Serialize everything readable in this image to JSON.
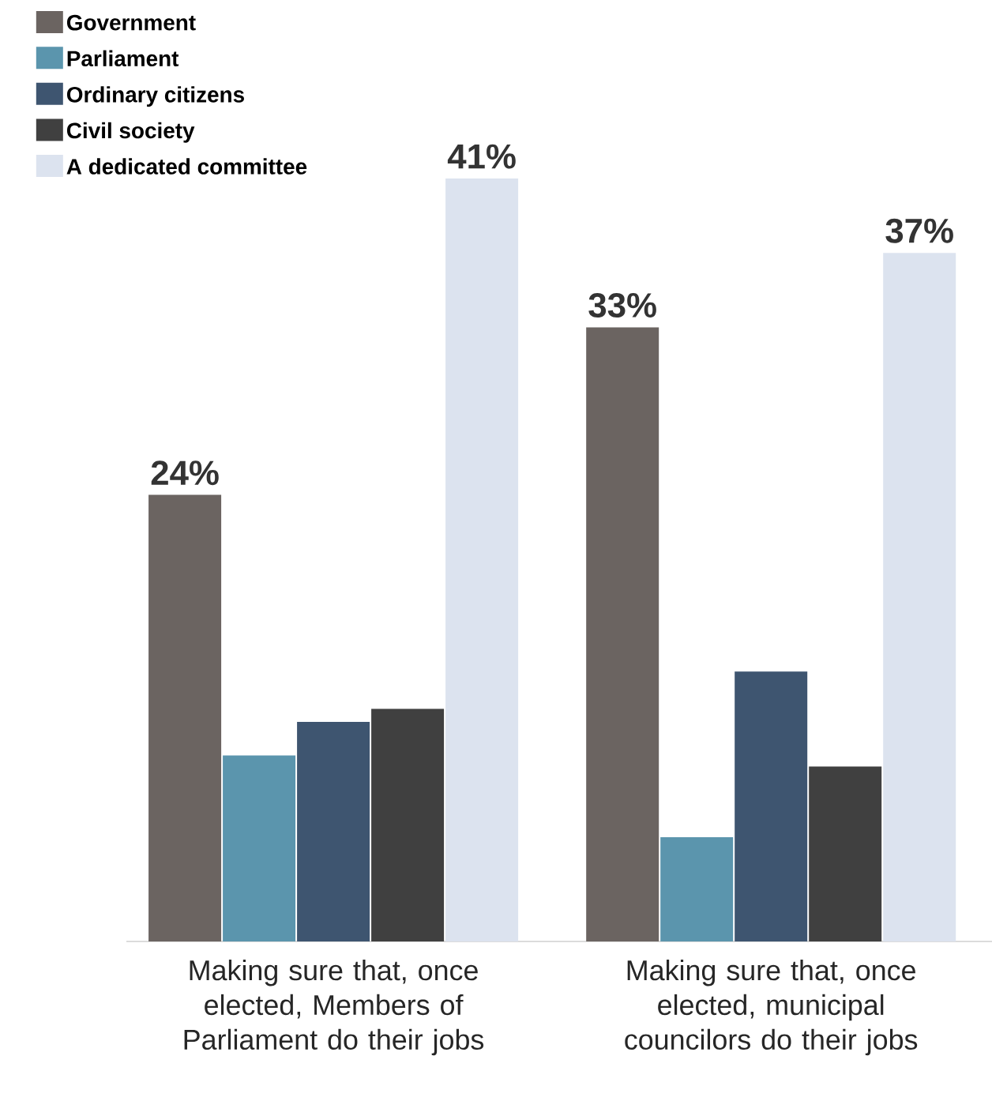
{
  "chart_data": {
    "type": "bar",
    "categories": [
      "Making sure that, once elected, Members of Parliament do  their jobs",
      "Making sure that, once elected, municipal councilors do their jobs"
    ],
    "series": [
      {
        "name": "Government",
        "color": "#6b6461",
        "values": [
          24,
          33
        ],
        "value_labels": [
          "24%",
          "33%"
        ]
      },
      {
        "name": "Parliament",
        "color": "#5b95ad",
        "values": [
          10,
          5.6
        ],
        "value_labels": [
          null,
          null
        ]
      },
      {
        "name": "Ordinary citizens",
        "color": "#3e5570",
        "values": [
          11.8,
          14.5
        ],
        "value_labels": [
          null,
          null
        ]
      },
      {
        "name": "Civil society",
        "color": "#404040",
        "values": [
          12.5,
          9.4
        ],
        "value_labels": [
          null,
          null
        ]
      },
      {
        "name": "A dedicated committee",
        "color": "#dce3ef",
        "values": [
          41,
          37
        ],
        "value_labels": [
          "41%",
          "37%"
        ]
      }
    ],
    "legend": "top left"
  }
}
